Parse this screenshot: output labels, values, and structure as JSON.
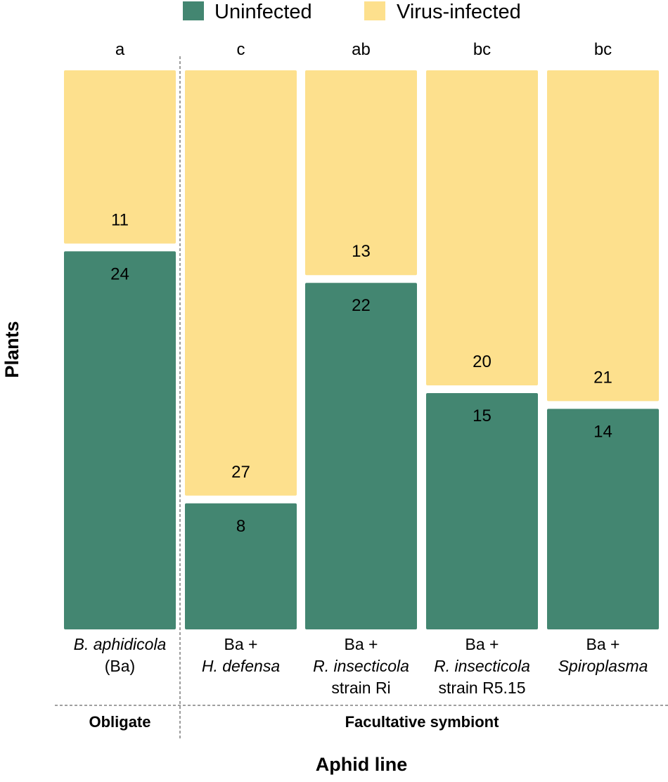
{
  "chart_data": {
    "type": "mosaic",
    "xlabel": "Aphid line",
    "ylabel": "Plants",
    "colors": {
      "Uninfected": "#438671",
      "Virus-infected": "#FDE08D"
    },
    "series": [
      {
        "name": "Uninfected",
        "values": [
          24,
          8,
          22,
          15,
          14
        ]
      },
      {
        "name": "Virus-infected",
        "values": [
          11,
          27,
          13,
          20,
          21
        ]
      }
    ],
    "categories": [
      {
        "lines": [
          {
            "text": "B. aphidicola",
            "italic": true
          },
          {
            "text": "(Ba)",
            "italic": false
          }
        ],
        "significance": "a"
      },
      {
        "lines": [
          {
            "text": "Ba +",
            "italic": false
          },
          {
            "text": "H. defensa",
            "italic": true
          }
        ],
        "significance": "c"
      },
      {
        "lines": [
          {
            "text": "Ba +",
            "italic": false
          },
          {
            "text": "R. insecticola",
            "italic": true
          },
          {
            "text": "strain Ri",
            "italic": false
          }
        ],
        "significance": "ab"
      },
      {
        "lines": [
          {
            "text": "Ba +",
            "italic": false
          },
          {
            "text": "R. insecticola",
            "italic": true
          },
          {
            "text": "strain R5.15",
            "italic": false
          }
        ],
        "significance": "bc"
      },
      {
        "lines": [
          {
            "text": "Ba +",
            "italic": false
          },
          {
            "text": "Spiroplasma",
            "italic": true
          }
        ],
        "significance": "bc"
      }
    ],
    "groups": [
      {
        "label": "Obligate",
        "span": [
          0,
          0
        ]
      },
      {
        "label": "Facultative symbiont",
        "span": [
          1,
          4
        ]
      }
    ],
    "legend": {
      "position": "top"
    }
  }
}
